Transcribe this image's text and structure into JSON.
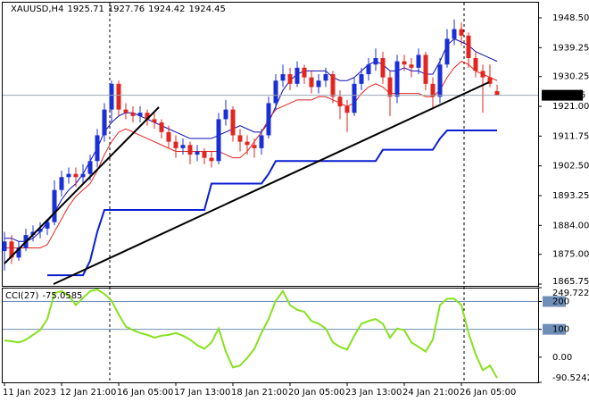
{
  "chart_data": [
    {
      "type": "candlestick",
      "symbol": "XAUUSD,H4",
      "up_color": "#1a2fd6",
      "down_color": "#e3241f",
      "categories": [
        "11 Jan 2023",
        null,
        null,
        null,
        null,
        null,
        null,
        null,
        "12 Jan 21:00",
        null,
        null,
        null,
        null,
        null,
        null,
        null,
        "16 Jan 05:00",
        null,
        null,
        null,
        null,
        null,
        null,
        null,
        "17 Jan 13:00",
        null,
        null,
        null,
        null,
        null,
        null,
        null,
        "18 Jan 21:00",
        null,
        null,
        null,
        null,
        null,
        null,
        null,
        "20 Jan 05:00",
        null,
        null,
        null,
        null,
        null,
        null,
        null,
        "23 Jan 13:00",
        null,
        null,
        null,
        null,
        null,
        null,
        null,
        "24 Jan 21:00",
        null,
        null,
        null,
        null,
        null,
        null,
        null,
        "26 Jan 05:00",
        null,
        null,
        null,
        null,
        null
      ],
      "ohlc": [
        [
          1876,
          1882,
          1870,
          1879
        ],
        [
          1879,
          1881,
          1872,
          1874
        ],
        [
          1874,
          1879,
          1873,
          1877
        ],
        [
          1877,
          1883,
          1876,
          1881
        ],
        [
          1881,
          1884,
          1879,
          1882
        ],
        [
          1882,
          1885,
          1880,
          1883
        ],
        [
          1883,
          1886,
          1881,
          1885
        ],
        [
          1885,
          1898,
          1884,
          1895
        ],
        [
          1895,
          1901,
          1893,
          1899
        ],
        [
          1899,
          1902,
          1897,
          1900
        ],
        [
          1900,
          1902,
          1896,
          1899
        ],
        [
          1899,
          1903,
          1897,
          1900
        ],
        [
          1900,
          1906,
          1898,
          1904
        ],
        [
          1904,
          1914,
          1902,
          1912
        ],
        [
          1912,
          1922,
          1910,
          1920
        ],
        [
          1920,
          1929,
          1916,
          1928
        ],
        [
          1928,
          1929,
          1918,
          1920
        ],
        [
          1920,
          1922,
          1917,
          1919
        ],
        [
          1919,
          1921,
          1916,
          1918
        ],
        [
          1918,
          1921,
          1916,
          1919
        ],
        [
          1919,
          1920,
          1915,
          1917
        ],
        [
          1917,
          1919,
          1914,
          1916
        ],
        [
          1916,
          1917,
          1911,
          1913
        ],
        [
          1913,
          1915,
          1908,
          1910
        ],
        [
          1910,
          1912,
          1905,
          1908
        ],
        [
          1908,
          1911,
          1906,
          1909
        ],
        [
          1909,
          1910,
          1903,
          1906
        ],
        [
          1906,
          1909,
          1904,
          1907
        ],
        [
          1907,
          1908,
          1903,
          1905
        ],
        [
          1905,
          1907,
          1902,
          1904
        ],
        [
          1904,
          1919,
          1903,
          1917
        ],
        [
          1917,
          1923,
          1915,
          1920
        ],
        [
          1920,
          1921,
          1910,
          1912
        ],
        [
          1912,
          1914,
          1907,
          1910
        ],
        [
          1910,
          1912,
          1906,
          1909
        ],
        [
          1909,
          1911,
          1905,
          1908
        ],
        [
          1908,
          1914,
          1906,
          1912
        ],
        [
          1912,
          1924,
          1911,
          1922
        ],
        [
          1922,
          1931,
          1920,
          1929
        ],
        [
          1929,
          1934,
          1927,
          1931
        ],
        [
          1931,
          1933,
          1926,
          1928
        ],
        [
          1928,
          1935,
          1927,
          1933
        ],
        [
          1933,
          1934,
          1928,
          1930
        ],
        [
          1930,
          1932,
          1925,
          1927
        ],
        [
          1927,
          1931,
          1925,
          1929
        ],
        [
          1929,
          1933,
          1927,
          1931
        ],
        [
          1931,
          1932,
          1922,
          1924
        ],
        [
          1924,
          1926,
          1917,
          1921
        ],
        [
          1921,
          1923,
          1913,
          1919
        ],
        [
          1919,
          1930,
          1918,
          1928
        ],
        [
          1928,
          1933,
          1926,
          1931
        ],
        [
          1931,
          1936,
          1929,
          1934
        ],
        [
          1934,
          1939,
          1932,
          1936
        ],
        [
          1936,
          1938,
          1928,
          1930
        ],
        [
          1930,
          1932,
          1918,
          1924
        ],
        [
          1924,
          1937,
          1922,
          1935
        ],
        [
          1935,
          1937,
          1932,
          1934
        ],
        [
          1934,
          1936,
          1930,
          1933
        ],
        [
          1933,
          1939,
          1931,
          1937
        ],
        [
          1937,
          1938,
          1926,
          1928
        ],
        [
          1928,
          1930,
          1920,
          1924
        ],
        [
          1924,
          1936,
          1922,
          1934
        ],
        [
          1934,
          1945,
          1933,
          1942
        ],
        [
          1942,
          1948,
          1940,
          1945
        ],
        [
          1945,
          1947,
          1940,
          1943
        ],
        [
          1943,
          1944,
          1933,
          1936
        ],
        [
          1936,
          1938,
          1930,
          1932
        ],
        [
          1932,
          1934,
          1919,
          1930
        ],
        [
          1930,
          1934,
          1927,
          1928
        ],
        [
          1925.71,
          1927.76,
          1924.42,
          1924.45
        ]
      ],
      "series": [
        {
          "color": "#0a0ab4",
          "values": [
            1880,
            1880,
            1879,
            1879,
            1880,
            1882,
            1885,
            1888,
            1892,
            1895,
            1897,
            1900,
            1904,
            1908,
            1913,
            1916,
            1918,
            1919,
            1919,
            1918,
            1917,
            1916,
            1915,
            1914,
            1913,
            1912,
            1911,
            1911,
            1911,
            1911,
            1912,
            1913,
            1914,
            1915,
            1914,
            1913,
            1913,
            1916,
            1921,
            1926,
            1929,
            1931,
            1932,
            1932,
            1932,
            1932,
            1930,
            1929,
            1929,
            1930,
            1932,
            1934,
            1935,
            1934,
            1932,
            1932,
            1933,
            1932,
            1932,
            1931,
            1931,
            1935,
            1940,
            1942,
            1941,
            1940,
            1938,
            1937,
            1936,
            1935
          ]
        },
        {
          "color": "#e3241f",
          "values": [
            1877,
            1877,
            1877,
            1877,
            1877,
            1877,
            1878,
            1882,
            1886,
            1890,
            1893,
            1895,
            1897,
            1901,
            1906,
            1910,
            1913,
            1914,
            1913,
            1912,
            1911,
            1910,
            1909,
            1908,
            1907,
            1907,
            1907,
            1907,
            1907,
            1907,
            1907,
            1906,
            1905,
            1905,
            1907,
            1910,
            1913,
            1917,
            1920,
            1921,
            1922,
            1923,
            1923,
            1923,
            1924,
            1924,
            1923,
            1922,
            1921,
            1922,
            1925,
            1927,
            1928,
            1927,
            1925,
            1925,
            1925,
            1925,
            1925,
            1924,
            1924,
            1926,
            1930,
            1933,
            1935,
            1934,
            1932,
            1931,
            1930,
            1929
          ]
        },
        {
          "color": "#0a1ed2",
          "values": [
            null,
            null,
            null,
            null,
            null,
            null,
            1868.5,
            1868.5,
            1868.5,
            1868.5,
            1868.5,
            1868.5,
            1873,
            1882,
            1888.8,
            1888.8,
            1888.8,
            1888.8,
            1888.8,
            1888.8,
            1888.8,
            1888.8,
            1888.8,
            1888.8,
            1888.8,
            1888.8,
            1888.8,
            1888.8,
            1888.8,
            1897,
            1897,
            1897,
            1897,
            1897,
            1897,
            1897,
            1897,
            1900,
            1904,
            1904,
            1904,
            1904,
            1904,
            1904,
            1904,
            1904,
            1904,
            1904,
            1904,
            1904,
            1904,
            1904,
            1904,
            1907.5,
            1907.5,
            1907.5,
            1907.5,
            1907.5,
            1907.5,
            1907.5,
            1907.5,
            1911,
            1913.5,
            1913.5,
            1913.5,
            1913.5,
            1913.5,
            1913.5,
            1913.5,
            1913.5
          ]
        }
      ],
      "ylim": [
        1865.2,
        1953.5
      ],
      "yticks": [
        {
          "value": 1948.5,
          "label": "1948.50"
        },
        1939.25,
        1930.25,
        {
          "value": 1921,
          "label": "1921.00"
        },
        1911.75,
        {
          "value": 1902.5,
          "label": "1902.50"
        },
        1893.25,
        {
          "value": 1884,
          "label": "1884.00"
        },
        {
          "value": 1875,
          "label": "1875.00"
        },
        1865.75
      ]
    },
    {
      "type": "line",
      "title": "CCI(27)",
      "color": "#86e21e",
      "level_color": "#6f8fb8",
      "values": [
        60,
        57,
        53,
        63,
        80,
        97,
        137,
        230,
        237,
        220,
        187,
        213,
        237,
        243,
        227,
        203,
        153,
        110,
        97,
        87,
        80,
        70,
        77,
        80,
        87,
        77,
        63,
        43,
        30,
        53,
        103,
        20,
        -37,
        -30,
        -3,
        30,
        87,
        137,
        203,
        237,
        187,
        170,
        163,
        130,
        120,
        103,
        53,
        37,
        27,
        77,
        120,
        130,
        137,
        120,
        70,
        103,
        97,
        53,
        37,
        20,
        63,
        187,
        210,
        210,
        187,
        87,
        10,
        -47,
        -30,
        -75.0585
      ],
      "ylim": [
        -90.5242,
        249.7222
      ],
      "yticks": [
        249.7222,
        200,
        100,
        {
          "value": 0,
          "label": "0.00"
        },
        -90.5242
      ],
      "levels": [
        200,
        100
      ]
    }
  ]
}
